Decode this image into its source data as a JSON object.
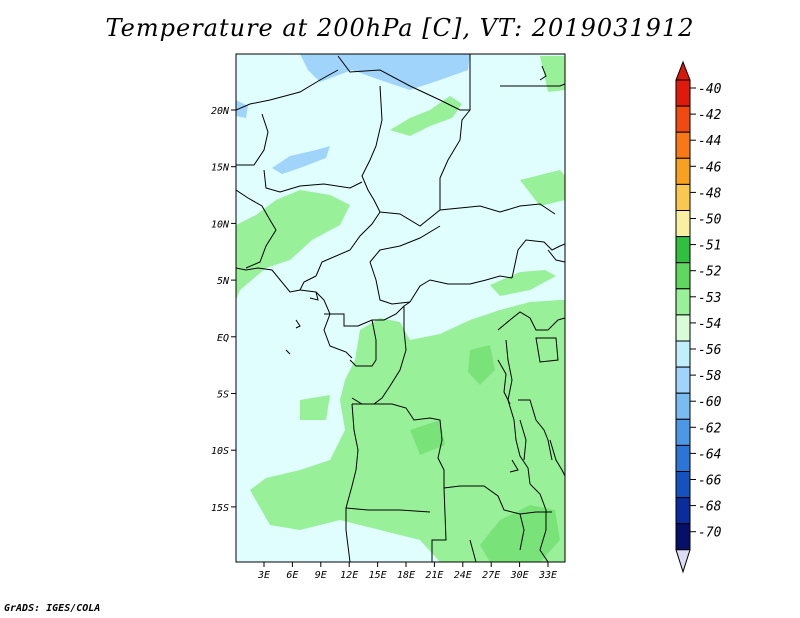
{
  "title": "Temperature at 200hPa [C], VT: 2019031912",
  "credit": "GrADS: IGES/COLA",
  "lat_labels": [
    "20N",
    "15N",
    "10N",
    "5N",
    "EQ",
    "5S",
    "10S",
    "15S"
  ],
  "lon_labels": [
    "3E",
    "6E",
    "9E",
    "12E",
    "15E",
    "18E",
    "21E",
    "24E",
    "27E",
    "30E",
    "33E"
  ],
  "colorbar": {
    "labels": [
      "-40",
      "-42",
      "-44",
      "-46",
      "-48",
      "-50",
      "-51",
      "-52",
      "-53",
      "-54",
      "-56",
      "-58",
      "-60",
      "-62",
      "-64",
      "-66",
      "-68",
      "-70"
    ],
    "colors": [
      "#e01a0a",
      "#f04a10",
      "#f87818",
      "#f8a020",
      "#f8c850",
      "#f8f0a0",
      "#30c040",
      "#60d860",
      "#98f098",
      "#d8fcd8",
      "#c0eefc",
      "#a0d4fa",
      "#78bcf2",
      "#4c98e6",
      "#2c74d6",
      "#1452c0",
      "#0a2c9c",
      "#061068"
    ],
    "arrow_top_color": "#d81808",
    "arrow_bottom_color": "#dcdcf4"
  },
  "field_colors": {
    "background": "#e0fefe",
    "cold": "#a0d4fa",
    "warm": "#98f098"
  }
}
